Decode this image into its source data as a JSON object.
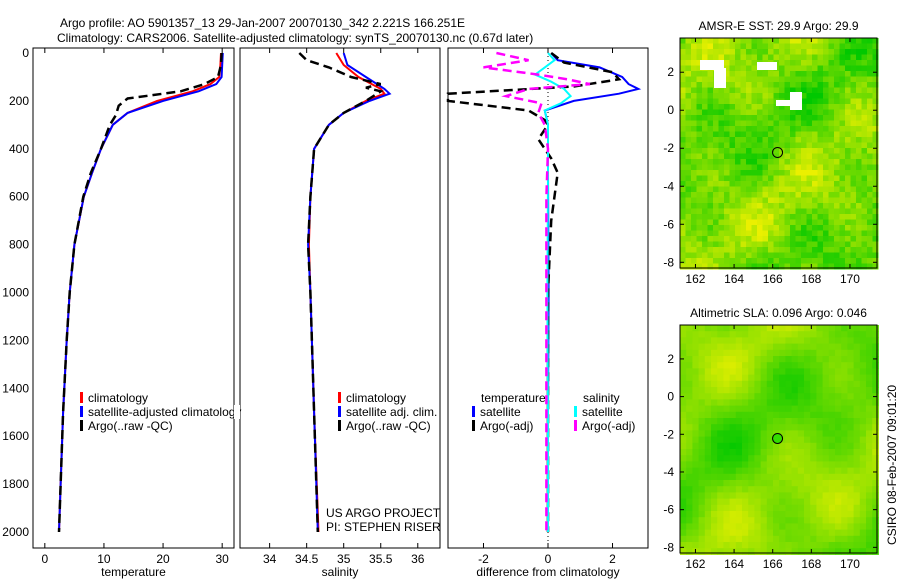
{
  "title_line1": "Argo profile: AO 5901357_13 29-Jan-2007 20070130_342 2.221S 166.251E",
  "title_line2": "Climatology: CARS2006. Satellite-adjusted climatology: synTS_20070130.nc (0.67d later)",
  "credit": "CSIRO 08-Feb-2007 09:01:20",
  "project_line1": "US ARGO PROJECT",
  "project_line2": "PI: STEPHEN RISER",
  "colors": {
    "red": "#ff0000",
    "blue": "#0000ff",
    "black": "#000000",
    "cyan": "#00ffff",
    "magenta": "#ff00ff"
  },
  "chart_data": [
    {
      "type": "line",
      "xlabel": "temperature",
      "ylabel": "",
      "xlim": [
        -2,
        32
      ],
      "ylim": [
        2060,
        0
      ],
      "xticks": [
        "0",
        "10",
        "20",
        "30"
      ],
      "xtickvals": [
        0,
        10,
        20,
        30
      ],
      "yticks": [
        "0",
        "200",
        "400",
        "600",
        "800",
        "1000",
        "1200",
        "1400",
        "1600",
        "1800",
        "2000"
      ],
      "legend": [
        "climatology",
        "satellite-adjusted climatology",
        "Argo(..raw -QC)"
      ],
      "series": [
        {
          "name": "climatology",
          "color": "red",
          "dash": false,
          "p": [
            0,
            50,
            100,
            130,
            160,
            200,
            250,
            300,
            400,
            500,
            600,
            800,
            1000,
            1200,
            1500,
            2000
          ],
          "v": [
            29.8,
            29.7,
            29.5,
            28,
            25,
            19,
            14,
            11.5,
            9.5,
            8,
            6.6,
            5,
            4.2,
            3.7,
            3.1,
            2.4
          ]
        },
        {
          "name": "satellite-adjusted climatology",
          "color": "blue",
          "dash": false,
          "p": [
            0,
            50,
            100,
            130,
            160,
            200,
            250,
            300,
            400,
            500,
            600,
            800,
            1000,
            1200,
            1500,
            2000
          ],
          "v": [
            30.1,
            30,
            29.9,
            29,
            26,
            20,
            14,
            11.5,
            9.5,
            8,
            6.6,
            5,
            4.2,
            3.7,
            3.1,
            2.4
          ]
        },
        {
          "name": "Argo(..raw -QC)",
          "color": "black",
          "dash": true,
          "p": [
            0,
            50,
            100,
            130,
            160,
            190,
            220,
            260,
            300,
            400,
            500,
            600,
            800,
            1000,
            1200,
            1500,
            2000
          ],
          "v": [
            29.9,
            29.8,
            29.3,
            27,
            23,
            14,
            12.5,
            12,
            11,
            9.5,
            7.8,
            6.5,
            5,
            4.2,
            3.7,
            3.1,
            2.4
          ]
        }
      ]
    },
    {
      "type": "line",
      "xlabel": "salinity",
      "ylabel": "",
      "xlim": [
        33.6,
        36.3
      ],
      "ylim": [
        2060,
        0
      ],
      "xticks": [
        "34",
        "34.5",
        "35",
        "35.5",
        "36"
      ],
      "xtickvals": [
        34,
        34.5,
        35,
        35.5,
        36
      ],
      "legend": [
        "climatology",
        "satellite adj. clim.",
        "Argo(..raw -QC)"
      ],
      "series": [
        {
          "name": "climatology",
          "color": "red",
          "dash": false,
          "p": [
            0,
            50,
            100,
            150,
            170,
            200,
            250,
            300,
            400,
            600,
            800,
            1000,
            1500,
            2000
          ],
          "v": [
            34.9,
            35.0,
            35.2,
            35.5,
            35.55,
            35.3,
            35.0,
            34.8,
            34.6,
            34.55,
            34.53,
            34.55,
            34.6,
            34.66
          ]
        },
        {
          "name": "satellite adj. clim.",
          "color": "blue",
          "dash": false,
          "p": [
            0,
            50,
            100,
            150,
            170,
            200,
            250,
            300,
            400,
            600,
            800,
            1000,
            1500,
            2000
          ],
          "v": [
            35.0,
            35.05,
            35.3,
            35.55,
            35.62,
            35.35,
            35.0,
            34.8,
            34.6,
            34.55,
            34.52,
            34.55,
            34.6,
            34.65
          ]
        },
        {
          "name": "Argo(..raw -QC)",
          "color": "black",
          "dash": true,
          "p": [
            0,
            30,
            60,
            100,
            130,
            145,
            160,
            200,
            250,
            300,
            400,
            600,
            800,
            1000,
            1500,
            2000
          ],
          "v": [
            34.4,
            34.5,
            34.8,
            35.1,
            35.5,
            35.3,
            35.5,
            35.3,
            35.0,
            34.8,
            34.6,
            34.55,
            34.52,
            34.55,
            34.6,
            34.65
          ]
        }
      ]
    },
    {
      "type": "line",
      "xlabel": "difference from climatology",
      "ylabel": "",
      "xlim": [
        -3.1,
        3.1
      ],
      "ylim": [
        2060,
        0
      ],
      "xticks": [
        "-2",
        "0",
        "2"
      ],
      "xtickvals": [
        -2,
        0,
        2
      ],
      "legend": [
        "temperature",
        "satellite",
        "Argo(-adj)",
        "salinity",
        "satellite",
        "Argo(-adj)"
      ],
      "series": [
        {
          "name": "temperature satellite",
          "color": "blue",
          "dash": false,
          "p": [
            0,
            30,
            60,
            100,
            130,
            150,
            170,
            200,
            240,
            300,
            500,
            1000,
            1500,
            2000
          ],
          "v": [
            0.1,
            0.3,
            1.6,
            2.3,
            2.5,
            2.8,
            2.2,
            0.8,
            -0.1,
            0,
            0,
            0.02,
            0,
            0
          ]
        },
        {
          "name": "temperature Argo(-adj)",
          "color": "black",
          "dash": true,
          "p": [
            0,
            40,
            80,
            110,
            140,
            170,
            200,
            240,
            280,
            300,
            360,
            440,
            500,
            700,
            1000,
            1500,
            2000
          ],
          "v": [
            0.1,
            0.5,
            2.0,
            2.2,
            0.8,
            -3.1,
            -3.1,
            -0.6,
            -0.1,
            0,
            -0.3,
            0.1,
            0.3,
            0.1,
            0,
            0,
            0
          ]
        },
        {
          "name": "salinity satellite",
          "color": "cyan",
          "dash": false,
          "p": [
            0,
            30,
            60,
            90,
            120,
            150,
            180,
            210,
            240,
            300,
            500,
            1000,
            1500,
            2000
          ],
          "v": [
            0.0,
            0.2,
            -0.1,
            -0.4,
            0.1,
            0.5,
            0.7,
            0.4,
            -0.1,
            0,
            0,
            -0.02,
            0,
            0
          ]
        },
        {
          "name": "salinity Argo(-adj)",
          "color": "magenta",
          "dash": true,
          "p": [
            0,
            30,
            60,
            90,
            110,
            130,
            150,
            180,
            210,
            250,
            300,
            400,
            600,
            1000,
            1500,
            2000
          ],
          "v": [
            -1.6,
            -0.6,
            -2.0,
            -0.3,
            0.6,
            1.3,
            -0.6,
            -1.3,
            -0.2,
            -0.3,
            -0.1,
            0,
            -0.05,
            -0.05,
            -0.05,
            -0.05
          ]
        }
      ]
    },
    {
      "type": "heatmap",
      "title": "AMSR-E SST: 29.9 Argo: 29.9",
      "xticks": [
        "162",
        "164",
        "166",
        "168",
        "170"
      ],
      "xtickvals": [
        162,
        164,
        166,
        168,
        170
      ],
      "yticks": [
        "2",
        "0",
        "-2",
        "-4",
        "-6",
        "-8"
      ],
      "ytickvals": [
        2,
        0,
        -2,
        -4,
        -6,
        -8
      ],
      "xlim": [
        161.2,
        171.4
      ],
      "ylim": [
        -8.3,
        3.8
      ],
      "marker": [
        166.251,
        -2.221
      ]
    },
    {
      "type": "heatmap",
      "title": "Altimetric SLA: 0.096 Argo: 0.046",
      "xticks": [
        "162",
        "164",
        "166",
        "168",
        "170"
      ],
      "xtickvals": [
        162,
        164,
        166,
        168,
        170
      ],
      "yticks": [
        "2",
        "0",
        "-2",
        "-4",
        "-6",
        "-8"
      ],
      "ytickvals": [
        2,
        0,
        -2,
        -4,
        -6,
        -8
      ],
      "xlim": [
        161.2,
        171.4
      ],
      "ylim": [
        -8.3,
        3.8
      ],
      "marker": [
        166.251,
        -2.221
      ]
    }
  ]
}
